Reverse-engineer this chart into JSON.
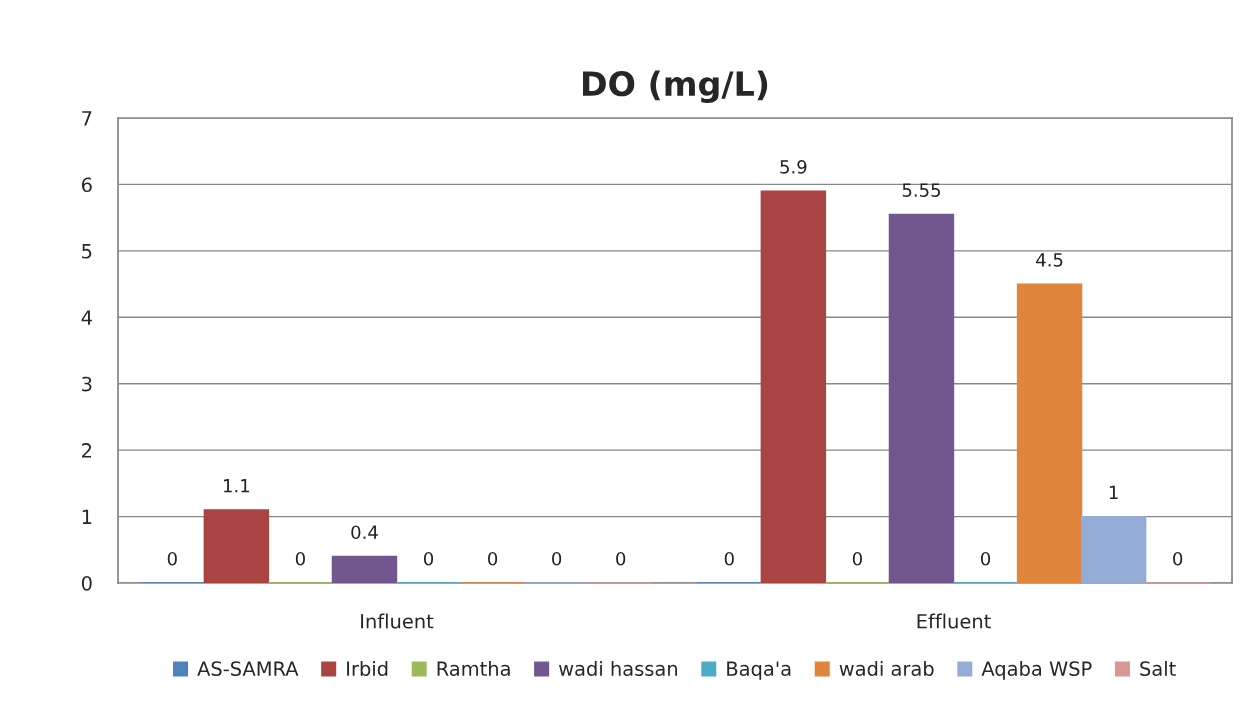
{
  "chart_data": {
    "type": "bar",
    "title": "DO (mg/L)",
    "categories": [
      "Influent",
      "Effluent"
    ],
    "series": [
      {
        "name": "AS-SAMRA",
        "color": "#4f81bd",
        "values": [
          0,
          0
        ]
      },
      {
        "name": "Irbid",
        "color": "#a94442",
        "values": [
          1.1,
          5.9
        ]
      },
      {
        "name": "Ramtha",
        "color": "#9bbb59",
        "values": [
          0,
          0
        ]
      },
      {
        "name": "wadi hassan",
        "color": "#72578f",
        "values": [
          0.4,
          5.55
        ]
      },
      {
        "name": "Baqa'a",
        "color": "#4bacc6",
        "values": [
          0,
          0
        ]
      },
      {
        "name": "wadi arab",
        "color": "#e0853c",
        "values": [
          0,
          4.5
        ]
      },
      {
        "name": "Aqaba WSP",
        "color": "#95acd6",
        "values": [
          0,
          1
        ]
      },
      {
        "name": "Salt",
        "color": "#d99694",
        "values": [
          0,
          0
        ]
      }
    ],
    "ylim": [
      0,
      7
    ],
    "yticks": [
      0,
      1,
      2,
      3,
      4,
      5,
      6,
      7
    ],
    "grid": "y",
    "legend": "bottom",
    "data_labels": true
  }
}
